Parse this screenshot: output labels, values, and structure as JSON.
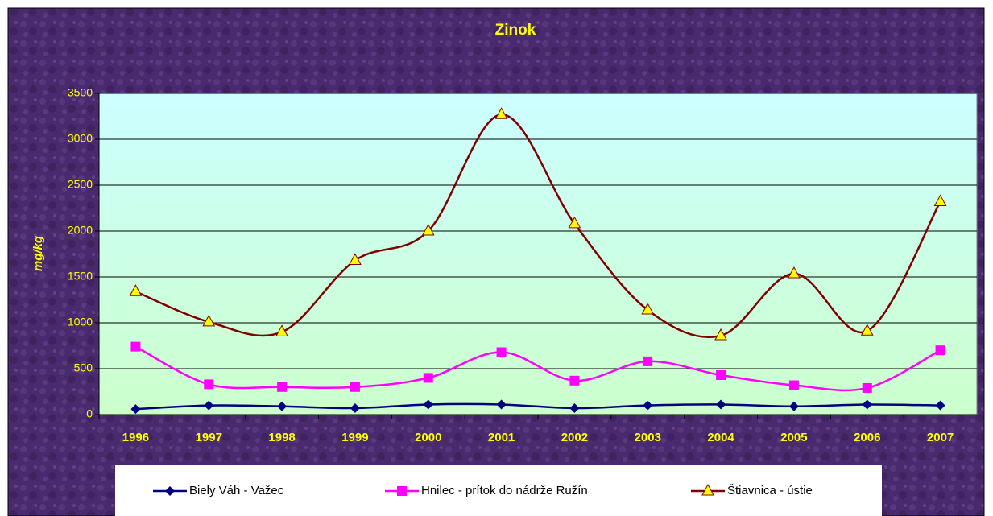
{
  "chart_data": {
    "type": "line",
    "title": "Zinok",
    "y_label": "mg/kg",
    "categories": [
      "1996",
      "1997",
      "1998",
      "1999",
      "2000",
      "2001",
      "2002",
      "2003",
      "2004",
      "2005",
      "2006",
      "2007"
    ],
    "series": [
      {
        "name": "Biely Váh - Važec",
        "color": "#000080",
        "marker": "diamond",
        "values": [
          60,
          100,
          90,
          70,
          110,
          110,
          70,
          100,
          110,
          90,
          110,
          100
        ]
      },
      {
        "name": "Hnilec - prítok do nádrže Ružín",
        "color": "#ff00ff",
        "marker": "square",
        "values": [
          740,
          330,
          300,
          300,
          400,
          680,
          370,
          580,
          430,
          320,
          290,
          700
        ]
      },
      {
        "name": "Štiavnica - ústie",
        "color": "#800000",
        "marker": "triangle",
        "values": [
          1340,
          1010,
          900,
          1680,
          2000,
          3270,
          2080,
          1140,
          860,
          1535,
          910,
          2320
        ]
      }
    ],
    "ylim": [
      0,
      3500
    ],
    "yticks": [
      0,
      500,
      1000,
      1500,
      2000,
      2500,
      3000,
      3500
    ],
    "grid": true,
    "smooth": true,
    "legend": "bottom"
  }
}
